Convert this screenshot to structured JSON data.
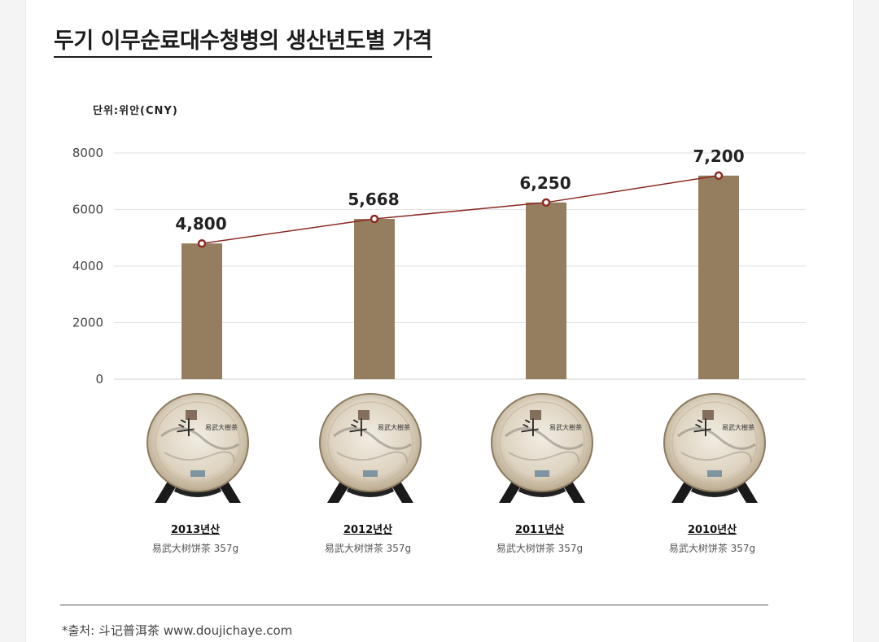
{
  "title": "두기 이무순료대수청병의 생산년도별 가격",
  "unit_label": "단위:위안(CNY)",
  "colors": {
    "bar": "#957d5f",
    "line": "#8b2a22",
    "grid": "#e2e2e2"
  },
  "chart_data": {
    "type": "bar",
    "categories": [
      "2013년산",
      "2012년산",
      "2011년산",
      "2010년산"
    ],
    "values": [
      4800,
      5668,
      6250,
      7200
    ],
    "value_labels": [
      "4,800",
      "5,668",
      "6,250",
      "7,200"
    ],
    "ylim": [
      0,
      8000
    ],
    "yticks": [
      "0",
      "2000",
      "4000",
      "6000",
      "8000"
    ],
    "overlay": "line-with-markers",
    "grid": true,
    "legend": "none"
  },
  "products": [
    {
      "year": "2013년산",
      "name": "易武大树饼茶 357g"
    },
    {
      "year": "2012년산",
      "name": "易武大树饼茶 357g"
    },
    {
      "year": "2011년산",
      "name": "易武大树饼茶 357g"
    },
    {
      "year": "2010년산",
      "name": "易武大树饼茶 357g"
    }
  ],
  "source": "*출처: 斗记普洱茶 www.doujichaye.com"
}
